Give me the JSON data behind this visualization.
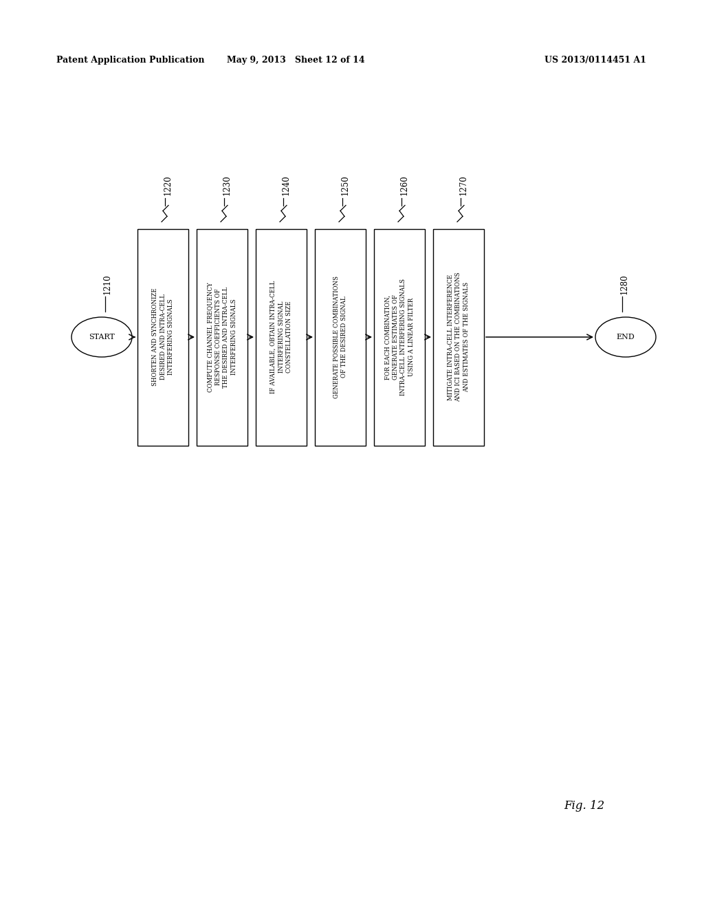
{
  "background_color": "#ffffff",
  "header_left": "Patent Application Publication",
  "header_mid": "May 9, 2013   Sheet 12 of 14",
  "header_right": "US 2013/0114451 A1",
  "footer_text": "Fig. 12",
  "start_label": "START",
  "start_ref": "1210",
  "end_label": "END",
  "end_ref": "1280",
  "boxes": [
    {
      "ref": "1220",
      "text": "SHORTEN AND SYNCHRONIZE\nDESIRED AND INTRA-CELL\nINTERFERING SIGNALS"
    },
    {
      "ref": "1230",
      "text": "COMPUTE CHANNEL FREQUENCY\nRESPONSE COEFFICIENTS OF\nTHE DESIRED AND INTRA-CELL\nINTERFERING SIGNALS"
    },
    {
      "ref": "1240",
      "text": "IF AVAILABLE, OBTAIN INTRA-CELL\nINTERFERING SIGNAL\nCONSTELLATION SIZE"
    },
    {
      "ref": "1250",
      "text": "GENERATE POSSIBLE COMBINATIONS\nOF THE DESIRED SIGNAL"
    },
    {
      "ref": "1260",
      "text": "FOR EACH COMBINATION,\nGENERATE ESTIMATES OF\nINTRA-CELL INTERFERING SIGNALS\nUSING A LINEAR FILTER"
    },
    {
      "ref": "1270",
      "text": "MITIGATE INTRA-CELL INTERFERENCE\nAND ICI BASED ON THE COMBINATIONS\nAND ESTIMATES OF THE SIGNALS"
    }
  ]
}
